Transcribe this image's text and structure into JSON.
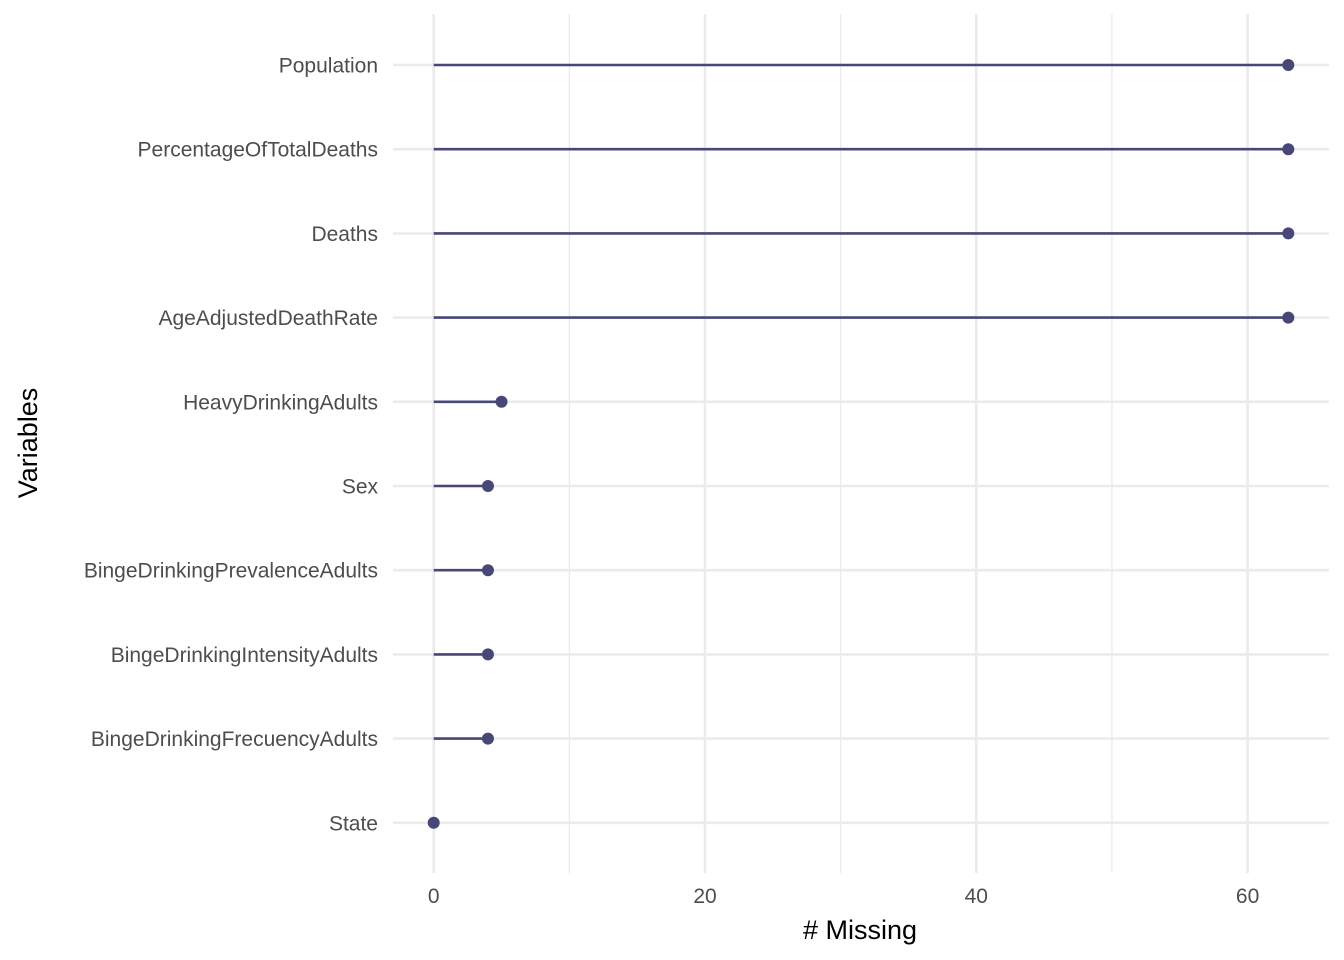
{
  "chart_data": {
    "type": "lollipop",
    "xlabel": "# Missing",
    "ylabel": "Variables",
    "xlim": [
      -3,
      66
    ],
    "x_ticks": [
      0,
      20,
      40,
      60
    ],
    "x_minor_ticks": [
      10,
      30,
      50
    ],
    "grid": true,
    "categories": [
      "Population",
      "PercentageOfTotalDeaths",
      "Deaths",
      "AgeAdjustedDeathRate",
      "HeavyDrinkingAdults",
      "Sex",
      "BingeDrinkingPrevalenceAdults",
      "BingeDrinkingIntensityAdults",
      "BingeDrinkingFrecuencyAdults",
      "State"
    ],
    "values": [
      63,
      63,
      63,
      63,
      5,
      4,
      4,
      4,
      4,
      0
    ],
    "colors": {
      "lollipop": "#484878",
      "grid": "#ebebeb",
      "tick_text": "#4d4d4d",
      "title_text": "#000000"
    }
  }
}
